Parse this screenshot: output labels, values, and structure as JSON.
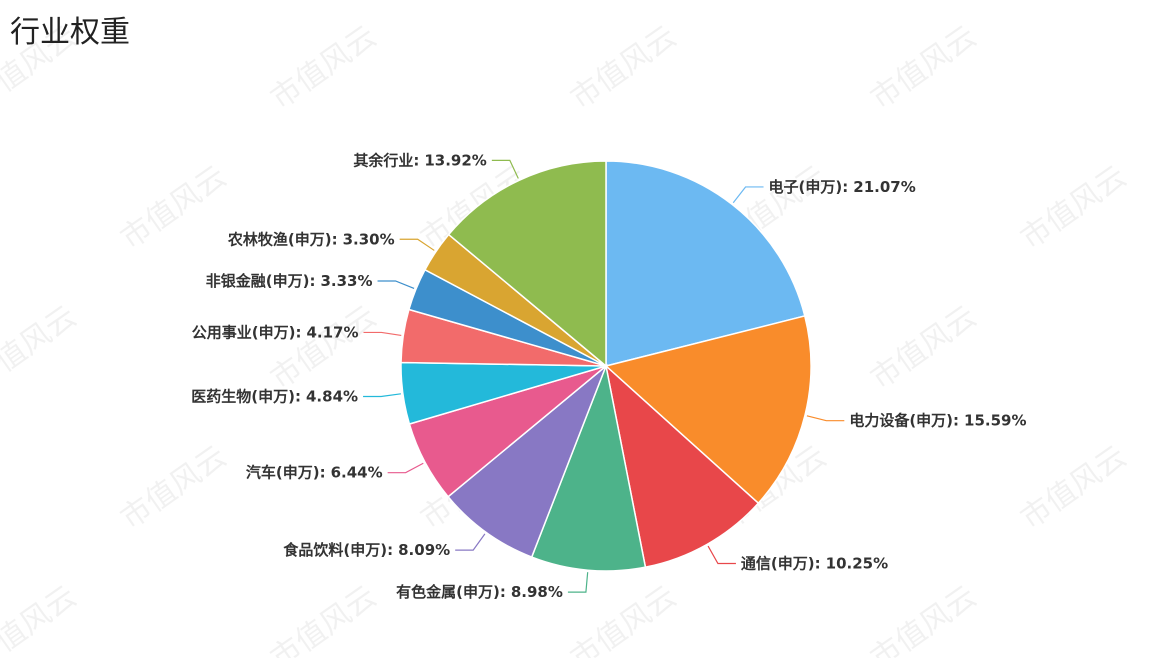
{
  "chart_data": {
    "type": "pie",
    "title": "行业权重",
    "watermark": "市值风云",
    "label_separator": ":",
    "categories": [
      "电子(申万)",
      "电力设备(申万)",
      "通信(申万)",
      "有色金属(申万)",
      "食品饮料(申万)",
      "汽车(申万)",
      "医药生物(申万)",
      "公用事业(申万)",
      "非银金融(申万)",
      "农林牧渔(申万)",
      "其余行业"
    ],
    "values": [
      21.07,
      15.59,
      10.25,
      8.98,
      8.09,
      6.44,
      4.84,
      4.17,
      3.33,
      3.3,
      13.92
    ],
    "value_labels": [
      "21.07%",
      "15.59%",
      "10.25%",
      "8.98%",
      "8.09%",
      "6.44%",
      "4.84%",
      "4.17%",
      "3.33%",
      "3.30%",
      "13.92%"
    ],
    "colors": [
      "#6cb9f2",
      "#f98c2b",
      "#e8474a",
      "#4db38a",
      "#8878c4",
      "#e85a8e",
      "#23b9da",
      "#f26b6b",
      "#3d8fcc",
      "#d9a531",
      "#8fbb4f"
    ]
  }
}
